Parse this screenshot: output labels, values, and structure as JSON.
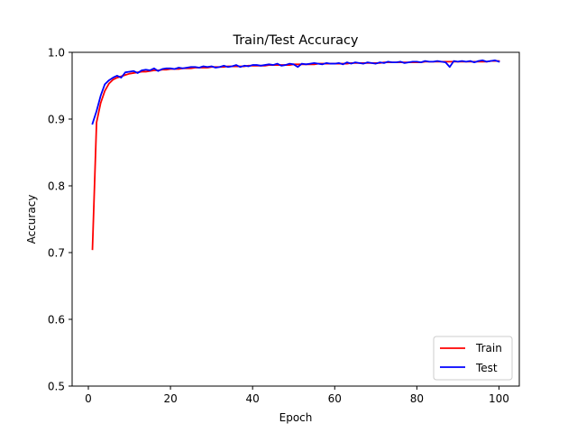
{
  "chart_data": {
    "type": "line",
    "title": "Train/Test Accuracy",
    "xlabel": "Epoch",
    "ylabel": "Accuracy",
    "xlim": [
      -3.95,
      104.95
    ],
    "ylim": [
      0.5,
      1.0
    ],
    "xticks": [
      0,
      20,
      40,
      60,
      80,
      100
    ],
    "yticks": [
      0.5,
      0.6,
      0.7,
      0.8,
      0.9,
      1.0
    ],
    "xtick_labels": [
      "0",
      "20",
      "40",
      "60",
      "80",
      "100"
    ],
    "ytick_labels": [
      "0.5",
      "0.6",
      "0.7",
      "0.8",
      "0.9",
      "1.0"
    ],
    "grid": false,
    "legend_position": "lower-right",
    "series": [
      {
        "name": "Train",
        "color": "#ff0000",
        "x": [
          1,
          2,
          3,
          4,
          5,
          6,
          7,
          8,
          9,
          10,
          11,
          12,
          13,
          14,
          15,
          16,
          17,
          18,
          19,
          20,
          21,
          22,
          23,
          24,
          25,
          26,
          27,
          28,
          29,
          30,
          31,
          32,
          33,
          34,
          35,
          36,
          37,
          38,
          39,
          40,
          41,
          42,
          43,
          44,
          45,
          46,
          47,
          48,
          49,
          50,
          51,
          52,
          53,
          54,
          55,
          56,
          57,
          58,
          59,
          60,
          61,
          62,
          63,
          64,
          65,
          66,
          67,
          68,
          69,
          70,
          71,
          72,
          73,
          74,
          75,
          76,
          77,
          78,
          79,
          80,
          81,
          82,
          83,
          84,
          85,
          86,
          87,
          88,
          89,
          90,
          91,
          92,
          93,
          94,
          95,
          96,
          97,
          98,
          99,
          100
        ],
        "y": [
          0.705,
          0.895,
          0.924,
          0.942,
          0.953,
          0.959,
          0.962,
          0.964,
          0.966,
          0.968,
          0.969,
          0.97,
          0.971,
          0.971,
          0.972,
          0.973,
          0.973,
          0.974,
          0.974,
          0.975,
          0.975,
          0.975,
          0.976,
          0.976,
          0.976,
          0.977,
          0.977,
          0.977,
          0.977,
          0.978,
          0.978,
          0.978,
          0.978,
          0.979,
          0.979,
          0.979,
          0.979,
          0.979,
          0.98,
          0.98,
          0.98,
          0.98,
          0.98,
          0.981,
          0.981,
          0.981,
          0.981,
          0.981,
          0.981,
          0.982,
          0.982,
          0.982,
          0.982,
          0.982,
          0.982,
          0.983,
          0.983,
          0.983,
          0.983,
          0.983,
          0.983,
          0.983,
          0.983,
          0.984,
          0.984,
          0.984,
          0.984,
          0.984,
          0.984,
          0.984,
          0.984,
          0.985,
          0.985,
          0.985,
          0.985,
          0.985,
          0.985,
          0.985,
          0.985,
          0.985,
          0.985,
          0.986,
          0.986,
          0.986,
          0.986,
          0.986,
          0.986,
          0.986,
          0.986,
          0.986,
          0.986,
          0.986,
          0.986,
          0.986,
          0.986,
          0.986,
          0.986,
          0.987,
          0.987,
          0.987
        ]
      },
      {
        "name": "Test",
        "color": "#0000ff",
        "x": [
          1,
          2,
          3,
          4,
          5,
          6,
          7,
          8,
          9,
          10,
          11,
          12,
          13,
          14,
          15,
          16,
          17,
          18,
          19,
          20,
          21,
          22,
          23,
          24,
          25,
          26,
          27,
          28,
          29,
          30,
          31,
          32,
          33,
          34,
          35,
          36,
          37,
          38,
          39,
          40,
          41,
          42,
          43,
          44,
          45,
          46,
          47,
          48,
          49,
          50,
          51,
          52,
          53,
          54,
          55,
          56,
          57,
          58,
          59,
          60,
          61,
          62,
          63,
          64,
          65,
          66,
          67,
          68,
          69,
          70,
          71,
          72,
          73,
          74,
          75,
          76,
          77,
          78,
          79,
          80,
          81,
          82,
          83,
          84,
          85,
          86,
          87,
          88,
          89,
          90,
          91,
          92,
          93,
          94,
          95,
          96,
          97,
          98,
          99,
          100
        ],
        "y": [
          0.893,
          0.912,
          0.935,
          0.952,
          0.958,
          0.962,
          0.965,
          0.962,
          0.97,
          0.971,
          0.972,
          0.969,
          0.973,
          0.974,
          0.973,
          0.976,
          0.972,
          0.975,
          0.976,
          0.976,
          0.975,
          0.977,
          0.976,
          0.977,
          0.978,
          0.978,
          0.977,
          0.979,
          0.978,
          0.979,
          0.977,
          0.978,
          0.98,
          0.978,
          0.979,
          0.981,
          0.978,
          0.98,
          0.979,
          0.981,
          0.981,
          0.98,
          0.981,
          0.982,
          0.981,
          0.983,
          0.98,
          0.981,
          0.983,
          0.982,
          0.978,
          0.983,
          0.982,
          0.983,
          0.984,
          0.983,
          0.982,
          0.984,
          0.983,
          0.983,
          0.984,
          0.982,
          0.985,
          0.983,
          0.985,
          0.984,
          0.983,
          0.985,
          0.984,
          0.983,
          0.985,
          0.984,
          0.986,
          0.985,
          0.985,
          0.986,
          0.984,
          0.985,
          0.986,
          0.986,
          0.985,
          0.987,
          0.986,
          0.986,
          0.987,
          0.986,
          0.985,
          0.978,
          0.987,
          0.986,
          0.987,
          0.986,
          0.987,
          0.985,
          0.987,
          0.988,
          0.986,
          0.987,
          0.988,
          0.986
        ]
      }
    ]
  }
}
